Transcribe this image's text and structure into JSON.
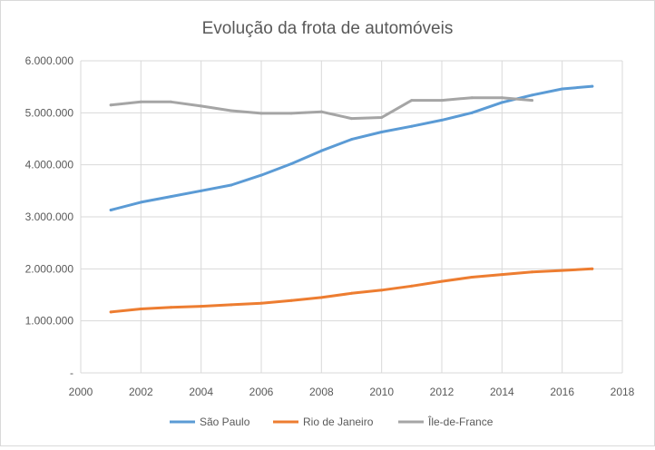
{
  "chart_data": {
    "type": "line",
    "title": "Evolução da frota de automóveis",
    "xlabel": "",
    "ylabel": "",
    "xlim": [
      2000,
      2018
    ],
    "ylim": [
      0,
      6000000
    ],
    "x_ticks": [
      2000,
      2002,
      2004,
      2006,
      2008,
      2010,
      2012,
      2014,
      2016,
      2018
    ],
    "x_tick_labels": [
      "2000",
      "2002",
      "2004",
      "2006",
      "2008",
      "2010",
      "2012",
      "2014",
      "2016",
      "2018"
    ],
    "y_ticks": [
      0,
      1000000,
      2000000,
      3000000,
      4000000,
      5000000,
      6000000
    ],
    "y_tick_labels": [
      "-",
      "1.000.000",
      "2.000.000",
      "3.000.000",
      "4.000.000",
      "5.000.000",
      "6.000.000"
    ],
    "grid": "vertical and horizontal",
    "legend_position": "bottom",
    "series": [
      {
        "name": "São Paulo",
        "color": "#5b9bd5",
        "x": [
          2001,
          2002,
          2003,
          2004,
          2005,
          2006,
          2007,
          2008,
          2009,
          2010,
          2011,
          2012,
          2013,
          2014,
          2015,
          2016,
          2017
        ],
        "y": [
          3130000,
          3280000,
          3390000,
          3500000,
          3610000,
          3800000,
          4020000,
          4270000,
          4490000,
          4630000,
          4740000,
          4860000,
          5000000,
          5200000,
          5340000,
          5460000,
          5510000
        ]
      },
      {
        "name": "Rio de Janeiro",
        "color": "#ed7d31",
        "x": [
          2001,
          2002,
          2003,
          2004,
          2005,
          2006,
          2007,
          2008,
          2009,
          2010,
          2011,
          2012,
          2013,
          2014,
          2015,
          2016,
          2017
        ],
        "y": [
          1170000,
          1230000,
          1260000,
          1280000,
          1310000,
          1340000,
          1390000,
          1450000,
          1530000,
          1590000,
          1670000,
          1760000,
          1840000,
          1890000,
          1940000,
          1970000,
          2000000
        ]
      },
      {
        "name": "Île-de-France",
        "color": "#a5a5a5",
        "x": [
          2001,
          2002,
          2003,
          2004,
          2005,
          2006,
          2007,
          2008,
          2009,
          2010,
          2011,
          2012,
          2013,
          2014,
          2015
        ],
        "y": [
          5150000,
          5210000,
          5210000,
          5130000,
          5040000,
          4990000,
          4990000,
          5020000,
          4890000,
          4910000,
          5240000,
          5240000,
          5290000,
          5290000,
          5240000
        ]
      }
    ]
  }
}
